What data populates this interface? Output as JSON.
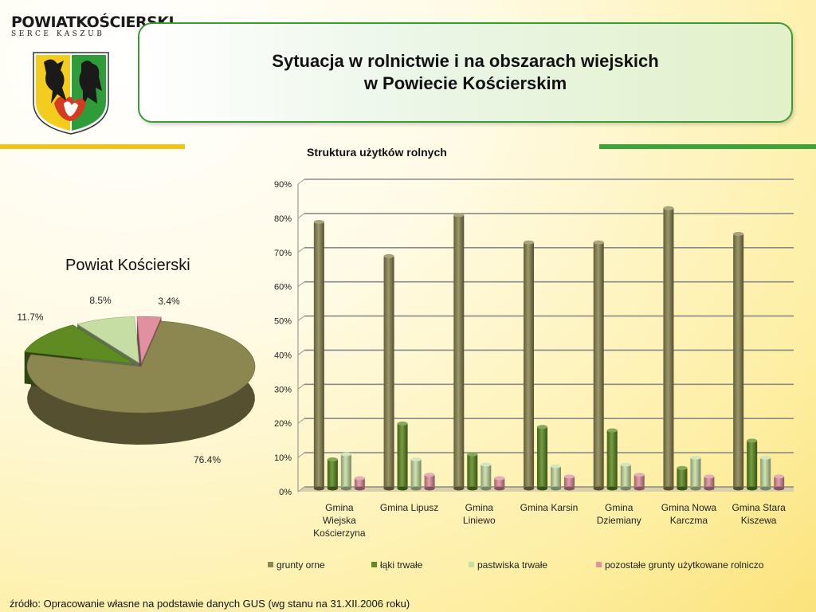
{
  "header": {
    "logo_line1": "POWIATKOŚCIERSKI",
    "logo_line2": "SERCE KASZUB",
    "title_line1": "Sytuacja w rolnictwie i na obszarach wiejskich",
    "title_line2": "w Powiecie Kościerskim"
  },
  "colors": {
    "grunty_orne": "#8c8650",
    "laki_trwale": "#5e8c22",
    "pastwiska_trwale": "#c6dea4",
    "pozostale": "#e0909e",
    "frame_green": "#3d9b35",
    "accent_yellow": "#f0c419"
  },
  "chart_data": [
    {
      "type": "pie",
      "title": "Powiat Kościerski",
      "labels": [
        "grunty orne",
        "łąki trwałe",
        "pastwiska trwałe",
        "pozostałe grunty użytkowane rolniczo"
      ],
      "values": [
        76.4,
        11.7,
        8.5,
        3.4
      ],
      "value_labels": [
        "76.4%",
        "11.7%",
        "8.5%",
        "3.4%"
      ]
    },
    {
      "type": "bar",
      "title": "Struktura użytków rolnych",
      "categories": [
        [
          "Gmina",
          "Wiejska",
          "Kościerzyna"
        ],
        [
          "Gmina Lipusz"
        ],
        [
          "Gmina",
          "Liniewo"
        ],
        [
          "Gmina Karsin"
        ],
        [
          "Gmina",
          "Dziemiany"
        ],
        [
          "Gmina Nowa",
          "Karczma"
        ],
        [
          "Gmina Stara",
          "Kiszewa"
        ]
      ],
      "series": [
        {
          "name": "grunty orne",
          "values": [
            78,
            68,
            80,
            72,
            72,
            82,
            74.5
          ]
        },
        {
          "name": "łąki trwałe",
          "values": [
            8.5,
            19,
            10,
            18,
            17,
            6,
            14
          ]
        },
        {
          "name": "pastwiska trwałe",
          "values": [
            10,
            8.5,
            7,
            6.5,
            7,
            9,
            9
          ]
        },
        {
          "name": "pozostałe grunty użytkowane rolniczo",
          "values": [
            3,
            4,
            3,
            3.5,
            4,
            3.5,
            3.5
          ]
        }
      ],
      "ylim": [
        0,
        90
      ],
      "yticks": [
        "0%",
        "10%",
        "20%",
        "30%",
        "40%",
        "50%",
        "60%",
        "70%",
        "80%",
        "90%"
      ],
      "grid": true,
      "legend": "bottom"
    }
  ],
  "source": "źródło: Opracowanie własne na podstawie danych GUS (wg stanu na 31.XII.2006 roku)"
}
